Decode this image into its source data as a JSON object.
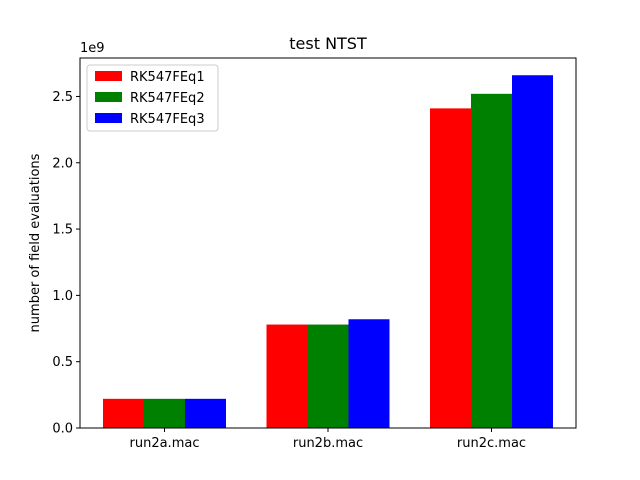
{
  "chart_data": {
    "type": "bar",
    "title": "test NTST",
    "xlabel": "",
    "ylabel": "number of field evaluations",
    "y_offset_label": "1e9",
    "categories": [
      "run2a.mac",
      "run2b.mac",
      "run2c.mac"
    ],
    "series": [
      {
        "name": "RK547FEq1",
        "color": "#ff0000",
        "values": [
          0.22,
          0.78,
          2.41
        ]
      },
      {
        "name": "RK547FEq2",
        "color": "#008000",
        "values": [
          0.22,
          0.78,
          2.52
        ]
      },
      {
        "name": "RK547FEq3",
        "color": "#0000ff",
        "values": [
          0.22,
          0.82,
          2.66
        ]
      }
    ],
    "yticks": [
      "0.0",
      "0.5",
      "1.0",
      "1.5",
      "2.0",
      "2.5"
    ],
    "ylim": [
      0,
      2.79
    ],
    "grid": false,
    "legend_position": "upper-left"
  }
}
